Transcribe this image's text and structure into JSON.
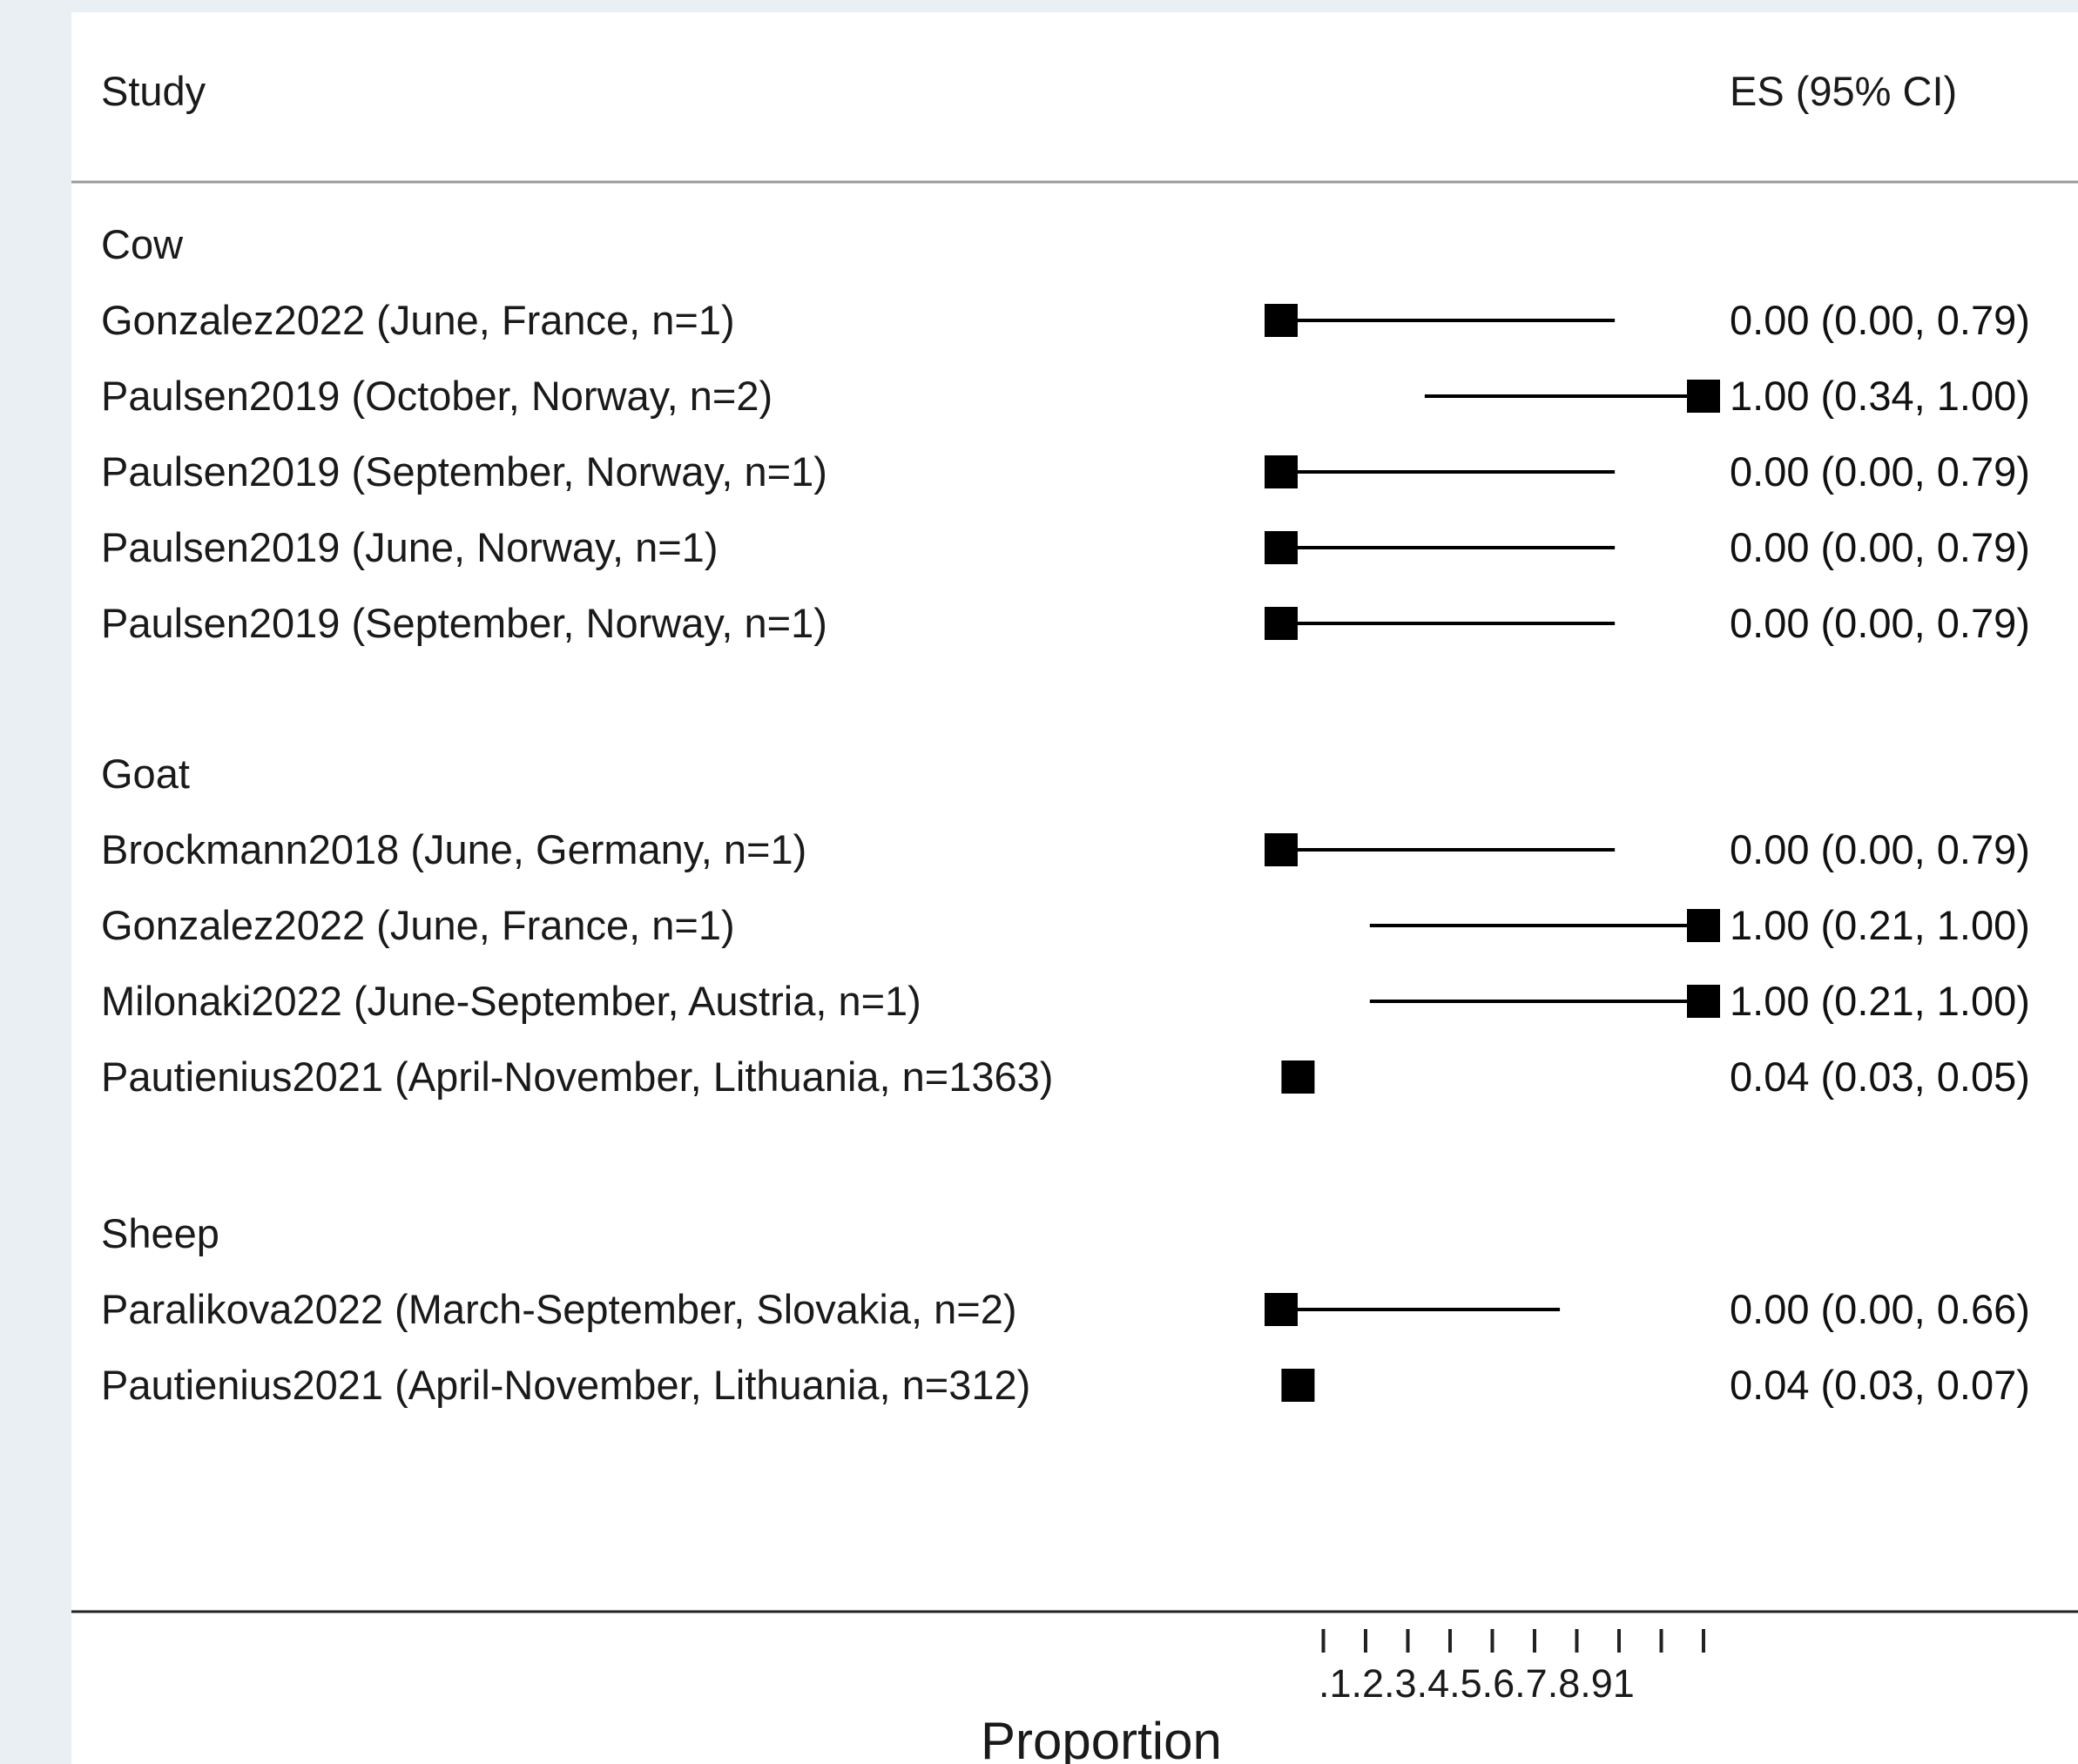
{
  "chart_data": {
    "type": "forest",
    "header": {
      "study": "Study",
      "es": "ES (95% CI)"
    },
    "xlabel": "Proportion",
    "xlim": [
      0,
      1
    ],
    "ticks": [
      0.1,
      0.2,
      0.3,
      0.4,
      0.5,
      0.6,
      0.7,
      0.8,
      0.9,
      1.0
    ],
    "tick_labels": ".1.2.3.4.5.6.7.8.91",
    "colors": {
      "marker": "#000000",
      "line": "#000000",
      "text": "#1a1a1a",
      "background": "#e9eff3",
      "panel": "#ffffff"
    },
    "groups": [
      {
        "name": "Cow",
        "studies": [
          {
            "label": "Gonzalez2022 (June, France, n=1)",
            "es": 0.0,
            "lo": 0.0,
            "hi": 0.79,
            "es_text": "0.00 (0.00, 0.79)"
          },
          {
            "label": "Paulsen2019 (October, Norway, n=2)",
            "es": 1.0,
            "lo": 0.34,
            "hi": 1.0,
            "es_text": "1.00 (0.34, 1.00)"
          },
          {
            "label": "Paulsen2019 (September, Norway, n=1)",
            "es": 0.0,
            "lo": 0.0,
            "hi": 0.79,
            "es_text": "0.00 (0.00, 0.79)"
          },
          {
            "label": "Paulsen2019 (June, Norway, n=1)",
            "es": 0.0,
            "lo": 0.0,
            "hi": 0.79,
            "es_text": "0.00 (0.00, 0.79)"
          },
          {
            "label": "Paulsen2019 (September, Norway, n=1)",
            "es": 0.0,
            "lo": 0.0,
            "hi": 0.79,
            "es_text": "0.00 (0.00, 0.79)"
          }
        ]
      },
      {
        "name": "Goat",
        "studies": [
          {
            "label": "Brockmann2018 (June, Germany, n=1)",
            "es": 0.0,
            "lo": 0.0,
            "hi": 0.79,
            "es_text": "0.00 (0.00, 0.79)"
          },
          {
            "label": "Gonzalez2022 (June, France, n=1)",
            "es": 1.0,
            "lo": 0.21,
            "hi": 1.0,
            "es_text": "1.00 (0.21, 1.00)"
          },
          {
            "label": "Milonaki2022 (June-September, Austria, n=1)",
            "es": 1.0,
            "lo": 0.21,
            "hi": 1.0,
            "es_text": "1.00 (0.21, 1.00)"
          },
          {
            "label": "Pautienius2021 (April-November, Lithuania, n=1363)",
            "es": 0.04,
            "lo": 0.03,
            "hi": 0.05,
            "es_text": "0.04 (0.03, 0.05)"
          }
        ]
      },
      {
        "name": "Sheep",
        "studies": [
          {
            "label": "Paralikova2022 (March-September, Slovakia, n=2)",
            "es": 0.0,
            "lo": 0.0,
            "hi": 0.66,
            "es_text": "0.00 (0.00, 0.66)"
          },
          {
            "label": "Pautienius2021 (April-November, Lithuania, n=312)",
            "es": 0.04,
            "lo": 0.03,
            "hi": 0.07,
            "es_text": "0.04 (0.03, 0.07)"
          }
        ]
      }
    ]
  }
}
